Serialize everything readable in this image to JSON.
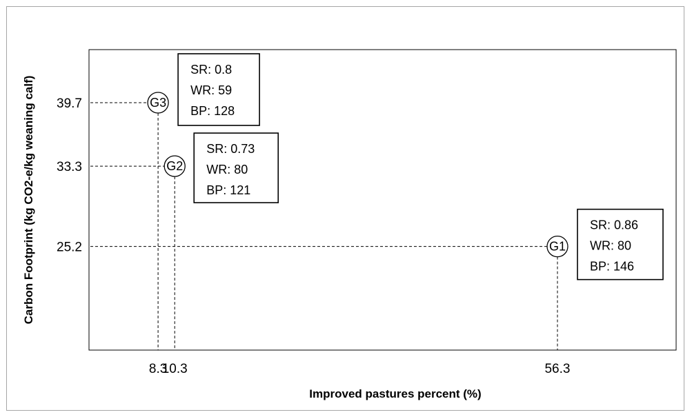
{
  "chart_data": {
    "type": "scatter",
    "xlabel": "Improved pastures percent (%)",
    "ylabel": "Carbon Footprint (kg CO2-e/kg weaning calf)",
    "x_ticks": [
      "8.3",
      "10.3",
      "56.3"
    ],
    "y_ticks": [
      "39.7",
      "33.3",
      "25.2"
    ],
    "xlim": [
      0,
      63
    ],
    "ylim": [
      14.2,
      44.6
    ],
    "grid": false,
    "points": [
      {
        "label": "G1",
        "x": 56.3,
        "y": 25.2,
        "annotation": [
          "SR: 0.86",
          "WR: 80",
          "BP: 146"
        ]
      },
      {
        "label": "G2",
        "x": 10.3,
        "y": 33.3,
        "annotation": [
          "SR: 0.73",
          "WR: 80",
          "BP: 121"
        ]
      },
      {
        "label": "G3",
        "x": 8.3,
        "y": 39.7,
        "annotation": [
          "SR: 0.8",
          "WR: 59",
          "BP: 128"
        ]
      }
    ]
  }
}
